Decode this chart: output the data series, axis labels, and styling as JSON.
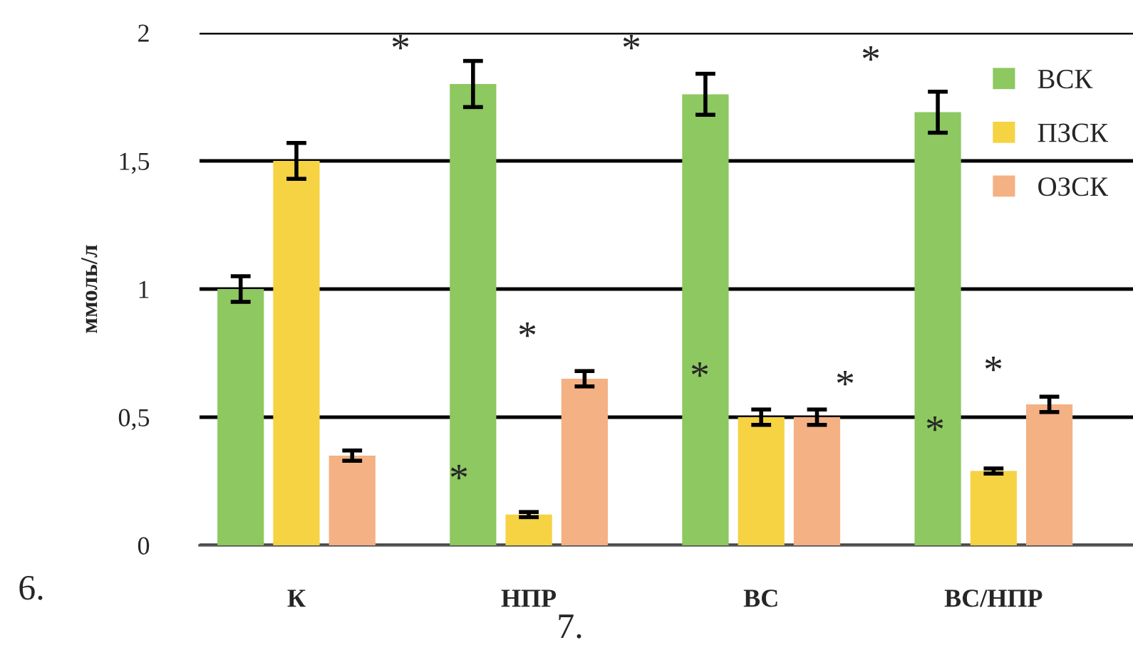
{
  "chart_data": {
    "type": "bar",
    "ylabel": "ммоль/л",
    "categories": [
      "К",
      "НПР",
      "ВС",
      "ВС/НПР"
    ],
    "series": [
      {
        "name": "ВСК",
        "color": "#8dc860",
        "values": [
          1.0,
          1.8,
          1.76,
          1.69
        ],
        "errors": [
          0.05,
          0.09,
          0.08,
          0.08
        ]
      },
      {
        "name": "ПЗСК",
        "color": "#f5d342",
        "values": [
          1.5,
          0.12,
          0.5,
          0.29
        ],
        "errors": [
          0.07,
          0.01,
          0.03,
          0.01
        ]
      },
      {
        "name": "ОЗСК",
        "color": "#f4b183",
        "values": [
          0.35,
          0.65,
          0.5,
          0.55
        ],
        "errors": [
          0.02,
          0.03,
          0.03,
          0.03
        ]
      }
    ],
    "ylim": [
      0,
      2
    ],
    "yticks": [
      {
        "value": 0,
        "label": "0"
      },
      {
        "value": 0.5,
        "label": "0,5"
      },
      {
        "value": 1,
        "label": "1"
      },
      {
        "value": 1.5,
        "label": "1,5"
      },
      {
        "value": 2,
        "label": "2"
      }
    ],
    "grid": "y",
    "legend": "top right",
    "annotations": [
      "*",
      "*",
      "*",
      "*",
      "*",
      "*",
      "*",
      "*",
      "*",
      "6.",
      "7."
    ]
  }
}
